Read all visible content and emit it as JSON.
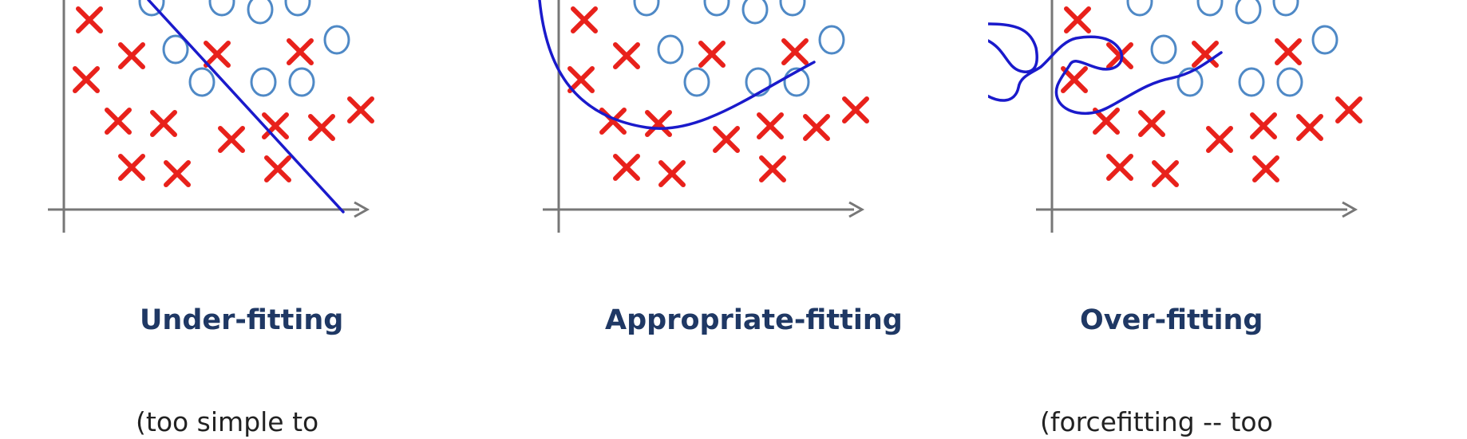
{
  "colors": {
    "cross": "#e8211b",
    "circle": "#4f89c6",
    "boundary": "#1a1acb",
    "axis": "#777777"
  },
  "panels": [
    {
      "title": "Under-fitting",
      "note": "(too simple to"
    },
    {
      "title": "Appropriate-fitting",
      "note": ""
    },
    {
      "title": "Over-fitting",
      "note": "(forcefitting -- too"
    }
  ]
}
